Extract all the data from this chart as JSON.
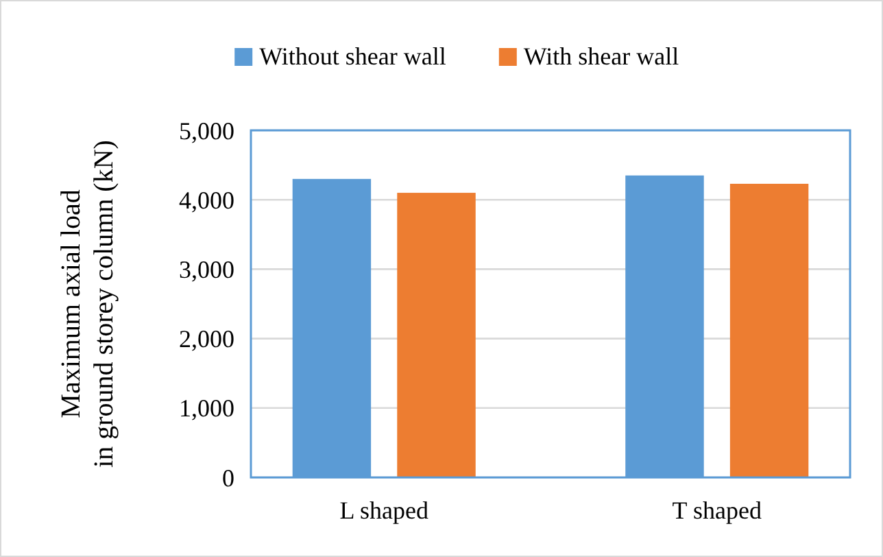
{
  "chart_data": {
    "type": "bar",
    "ylabel": "Maximum axial load in ground storey column (kN)",
    "categories": [
      "L shaped",
      "T shaped"
    ],
    "series": [
      {
        "name": "Without shear wall",
        "color": "#5b9bd5",
        "values": [
          4300,
          4350
        ]
      },
      {
        "name": "With shear wall",
        "color": "#ed7d31",
        "values": [
          4100,
          4230
        ]
      }
    ],
    "ylim": [
      0,
      5000
    ],
    "yticks": [
      {
        "value": 0,
        "label": "0"
      },
      {
        "value": 1000,
        "label": "1,000"
      },
      {
        "value": 2000,
        "label": "2,000"
      },
      {
        "value": 3000,
        "label": "3,000"
      },
      {
        "value": 4000,
        "label": "4,000"
      },
      {
        "value": 5000,
        "label": "5,000"
      }
    ],
    "grid": "y",
    "legend": "top"
  }
}
